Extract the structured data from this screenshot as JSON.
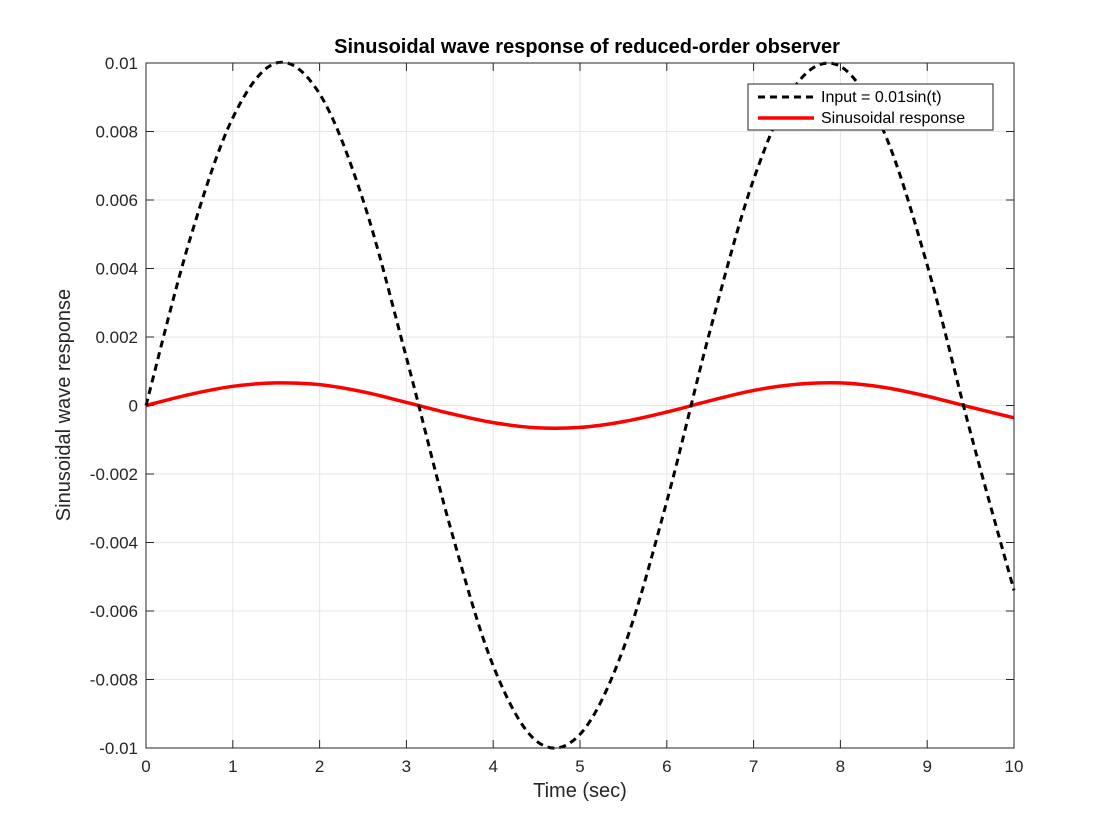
{
  "chart_data": {
    "type": "line",
    "title": "Sinusoidal wave response of reduced-order observer",
    "xlabel": "Time (sec)",
    "ylabel": "Sinusoidal wave response",
    "xlim": [
      0,
      10
    ],
    "ylim": [
      -0.01,
      0.01
    ],
    "x_ticks": [
      "0",
      "1",
      "2",
      "3",
      "4",
      "5",
      "6",
      "7",
      "8",
      "9",
      "10"
    ],
    "y_ticks": [
      "-0.01",
      "-0.008",
      "-0.006",
      "-0.004",
      "-0.002",
      "0",
      "0.002",
      "0.004",
      "0.006",
      "0.008",
      "0.01"
    ],
    "grid": true,
    "legend_position": "top-right",
    "series": [
      {
        "name": "Input = 0.01sin(t)",
        "color": "#000000",
        "style": "dashed",
        "x": [
          0,
          0.5,
          1,
          1.5,
          2,
          2.5,
          3,
          3.5,
          4,
          4.5,
          5,
          5.5,
          6,
          6.5,
          7,
          7.5,
          8,
          8.5,
          9,
          9.5,
          10
        ],
        "y": [
          0,
          0.0048,
          0.0084,
          0.01,
          0.0091,
          0.006,
          0.0014,
          -0.0035,
          -0.0076,
          -0.0098,
          -0.0096,
          -0.0071,
          -0.0028,
          0.0022,
          0.0066,
          0.0094,
          0.0099,
          0.008,
          0.0041,
          -0.0008,
          -0.0054
        ]
      },
      {
        "name": "Sinusoidal response",
        "color": "#ff0000",
        "style": "solid",
        "x": [
          0,
          0.5,
          1,
          1.5,
          2,
          2.5,
          3,
          3.5,
          4,
          4.5,
          5,
          5.5,
          6,
          6.5,
          7,
          7.5,
          8,
          8.5,
          9,
          9.5,
          10
        ],
        "y": [
          0,
          0.00032,
          0.00056,
          0.00066,
          0.00061,
          0.0004,
          9e-05,
          -0.00023,
          -0.0005,
          -0.00065,
          -0.00064,
          -0.00047,
          -0.00019,
          0.00014,
          0.00044,
          0.00062,
          0.00066,
          0.00053,
          0.00027,
          -5e-05,
          -0.00036
        ]
      }
    ]
  }
}
